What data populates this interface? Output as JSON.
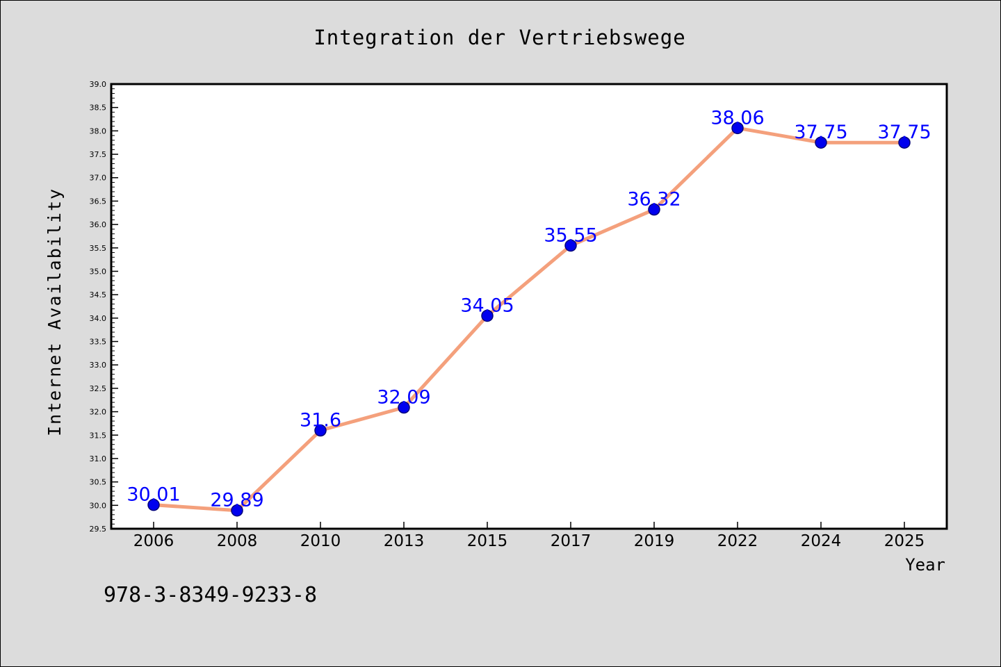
{
  "chart_data": {
    "type": "line",
    "title": "Integration der Vertriebswege",
    "xlabel": "Year",
    "ylabel": "Internet Availability",
    "categories": [
      "2006",
      "2008",
      "2010",
      "2013",
      "2015",
      "2017",
      "2019",
      "2022",
      "2024",
      "2025"
    ],
    "series": [
      {
        "values": [
          30.01,
          29.89,
          31.6,
          32.09,
          34.05,
          35.55,
          36.32,
          38.06,
          37.75,
          37.75
        ],
        "labels": [
          "30.01",
          "29.89",
          "31.6",
          "32.09",
          "34.05",
          "35.55",
          "36.32",
          "38.06",
          "37.75",
          "37.75"
        ]
      }
    ],
    "ylim": [
      29.5,
      39.0
    ],
    "yticks": [
      "29.5",
      "30.0",
      "30.5",
      "31.0",
      "31.5",
      "32.0",
      "32.5",
      "33.0",
      "33.5",
      "34.0",
      "34.5",
      "35.0",
      "35.5",
      "36.0",
      "36.5",
      "37.0",
      "37.5",
      "38.0",
      "38.5",
      "39.0"
    ],
    "grid": false,
    "legend": "none",
    "annotation": "978-3-8349-9233-8",
    "colors": {
      "line": "#f4a07c",
      "marker": "#0000ee",
      "data_label": "#0000ff",
      "figure_background": "#dcdcdc",
      "plot_background": "#ffffff"
    }
  }
}
